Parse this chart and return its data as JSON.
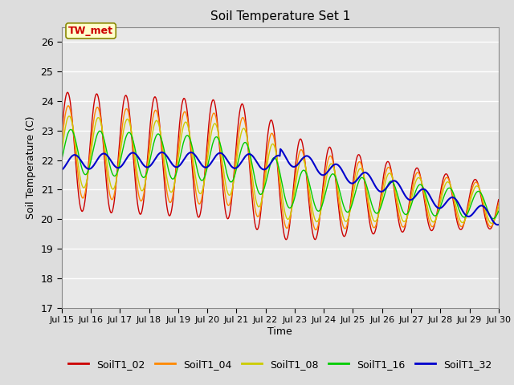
{
  "title": "Soil Temperature Set 1",
  "xlabel": "Time",
  "ylabel": "Soil Temperature (C)",
  "ylim": [
    17.0,
    26.5
  ],
  "yticks": [
    17.0,
    18.0,
    19.0,
    20.0,
    21.0,
    22.0,
    23.0,
    24.0,
    25.0,
    26.0
  ],
  "colors": {
    "SoilT1_02": "#cc0000",
    "SoilT1_04": "#ff8800",
    "SoilT1_08": "#cccc00",
    "SoilT1_16": "#00cc00",
    "SoilT1_32": "#0000cc"
  },
  "legend_labels": [
    "SoilT1_02",
    "SoilT1_04",
    "SoilT1_08",
    "SoilT1_16",
    "SoilT1_32"
  ],
  "annotation_text": "TW_met",
  "bg_color": "#dddddd",
  "plot_bg_color": "#e8e8e8",
  "grid_color": "#ffffff",
  "xtick_labels": [
    "Jul 15",
    "Jul 16",
    "Jul 17",
    "Jul 18",
    "Jul 19",
    "Jul 20",
    "Jul 21",
    "Jul 22",
    "Jul 23",
    "Jul 24",
    "Jul 25",
    "Jul 26",
    "Jul 27",
    "Jul 28",
    "Jul 29",
    "Jul 30"
  ],
  "n_points": 720
}
